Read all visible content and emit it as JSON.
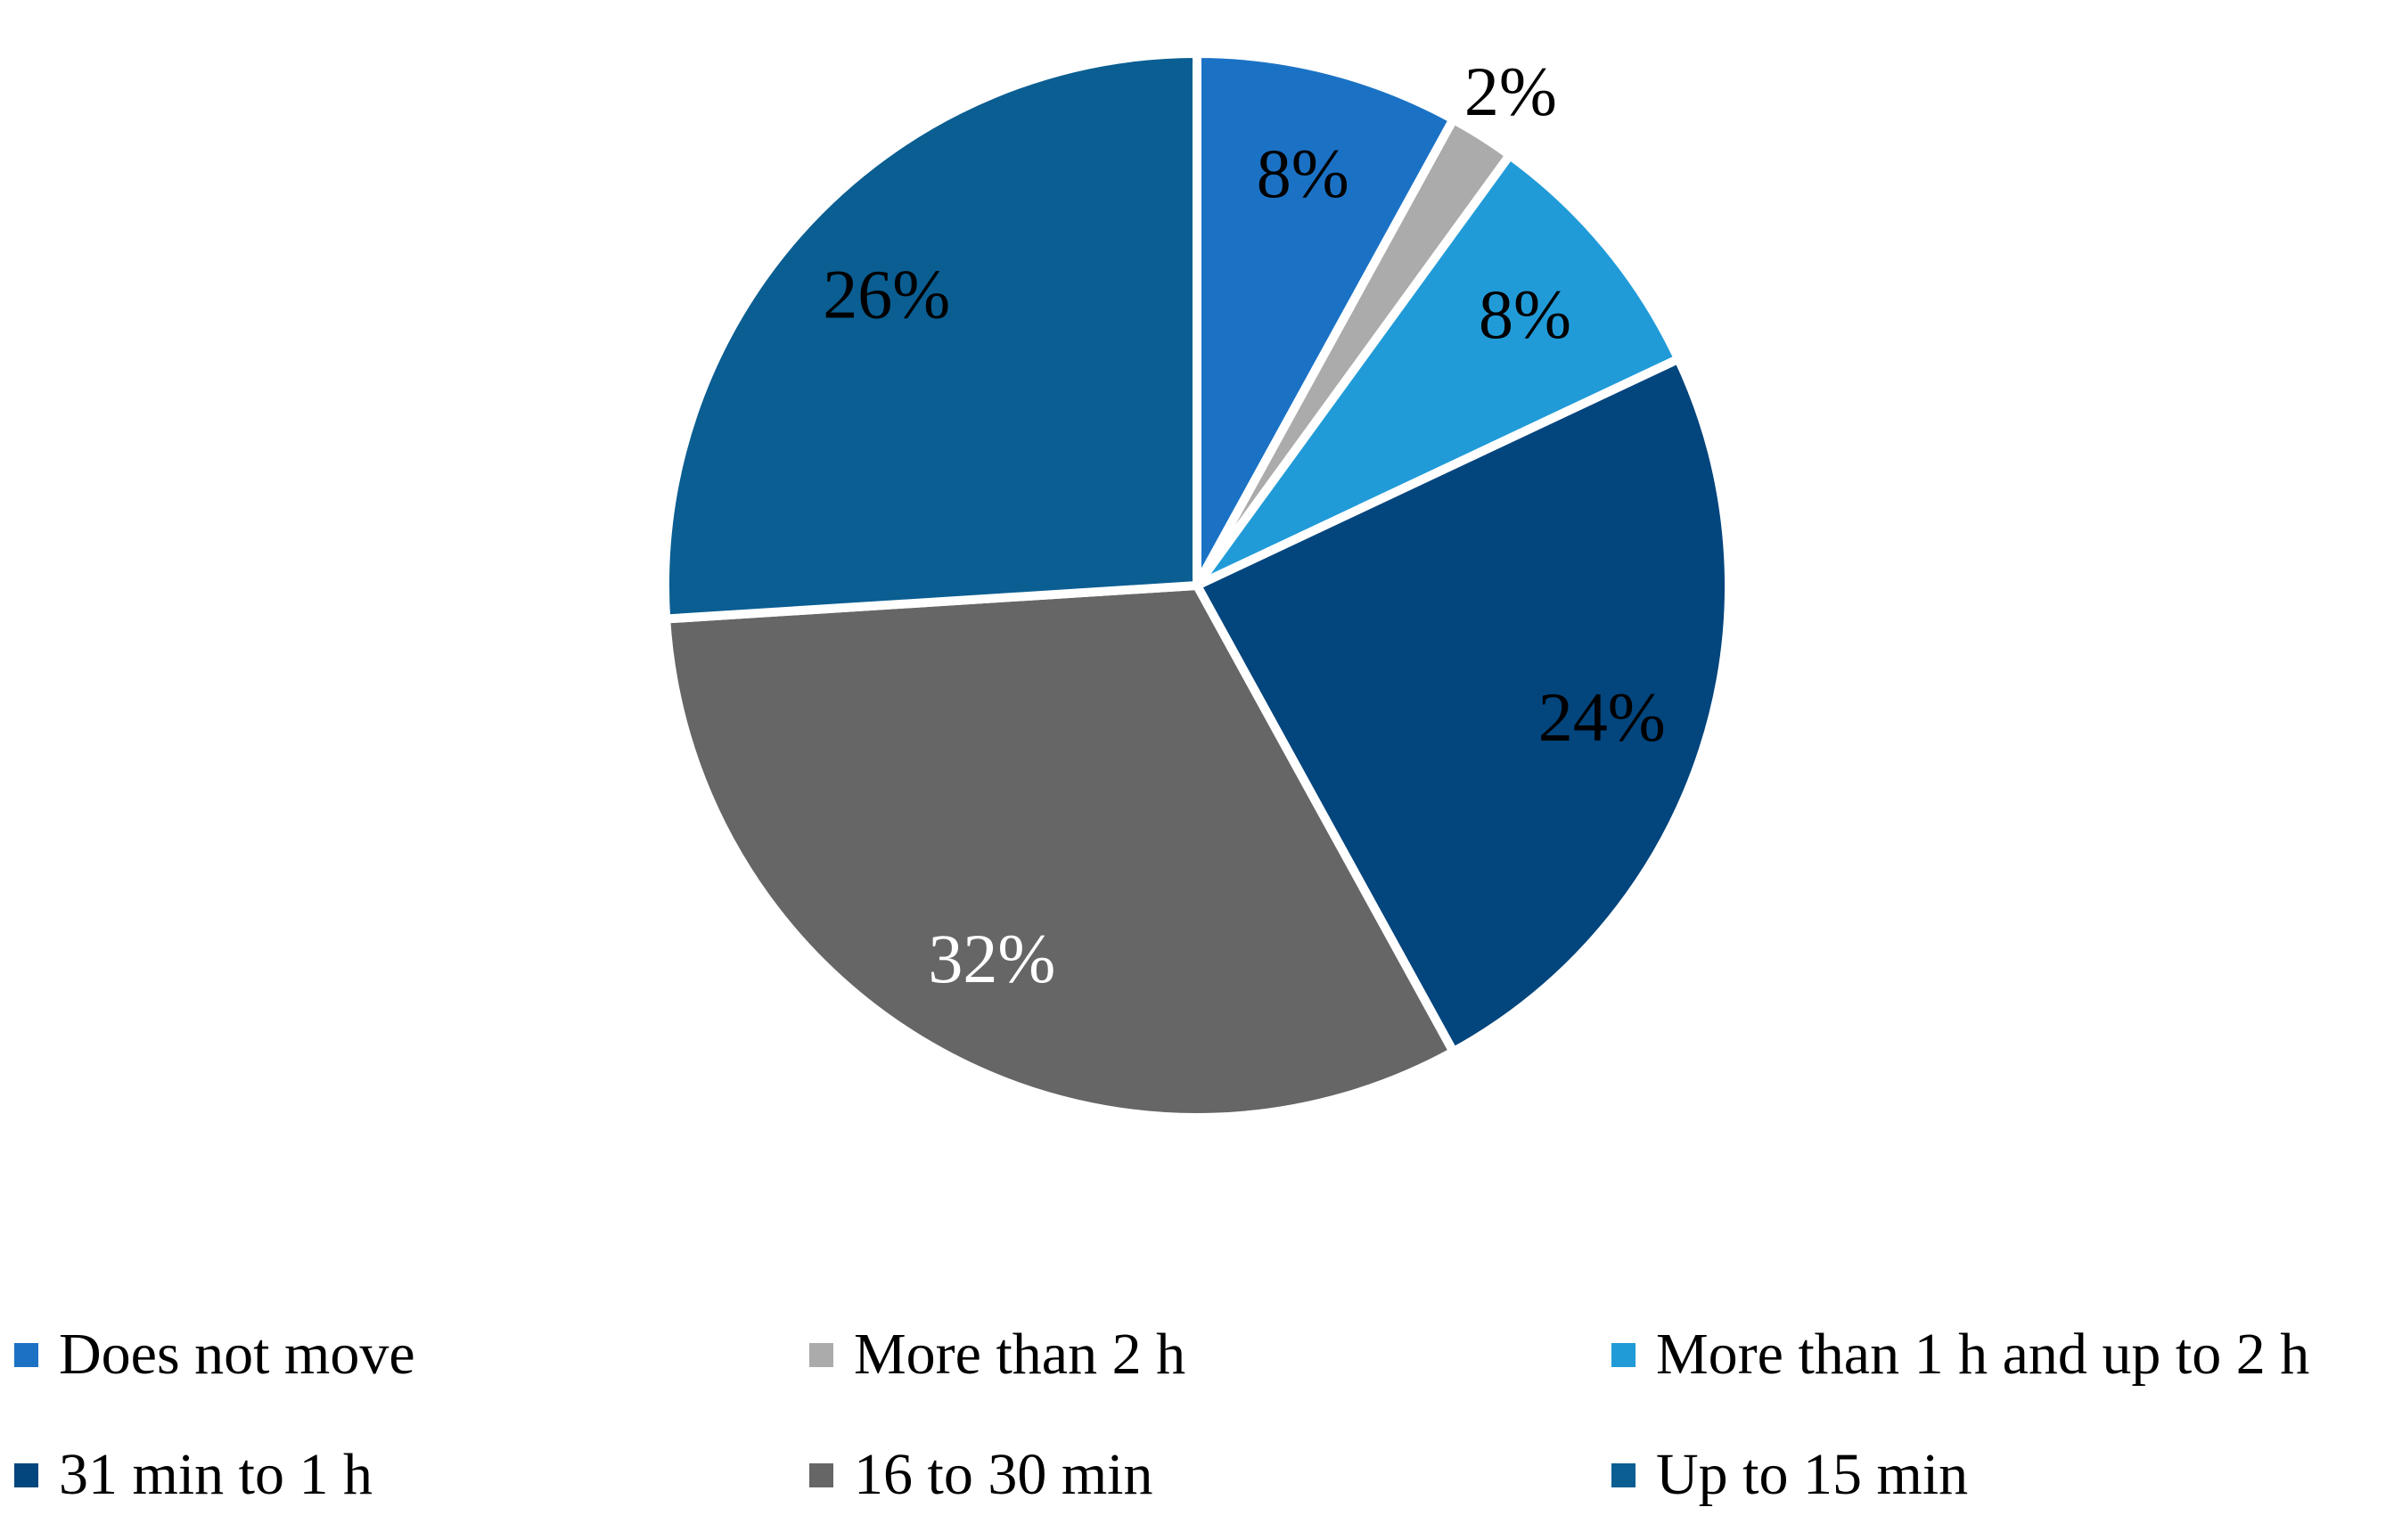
{
  "chart_data": {
    "type": "pie",
    "title": "",
    "background": "#FFFFFF",
    "slice_border_color": "#FFFFFF",
    "start_angle_deg": 0,
    "direction": "clockwise",
    "legend_position": "bottom",
    "legend_rows": 2,
    "legend_columns": 3,
    "slices": [
      {
        "label": "Does not move",
        "value": 8,
        "data_label": "8%",
        "color": "#1B72C5",
        "data_label_color": "#000000",
        "label_outside": false
      },
      {
        "label": "More than 2 h",
        "value": 2,
        "data_label": "2%",
        "color": "#ABABAB",
        "data_label_color": "#000000",
        "label_outside": true
      },
      {
        "label": "More than 1 h and up to 2 h",
        "value": 8,
        "data_label": "8%",
        "color": "#219BD8",
        "data_label_color": "#000000",
        "label_outside": false
      },
      {
        "label": "31 min to 1 h",
        "value": 24,
        "data_label": "24%",
        "color": "#03457D",
        "data_label_color": "#000000",
        "label_outside": false
      },
      {
        "label": "16 to 30 min",
        "value": 32,
        "data_label": "32%",
        "color": "#666666",
        "data_label_color": "#FFFFFF",
        "label_outside": false
      },
      {
        "label": "Up to 15 min",
        "value": 26,
        "data_label": "26%",
        "color": "#0A5E92",
        "data_label_color": "#000000",
        "label_outside": false
      }
    ]
  }
}
